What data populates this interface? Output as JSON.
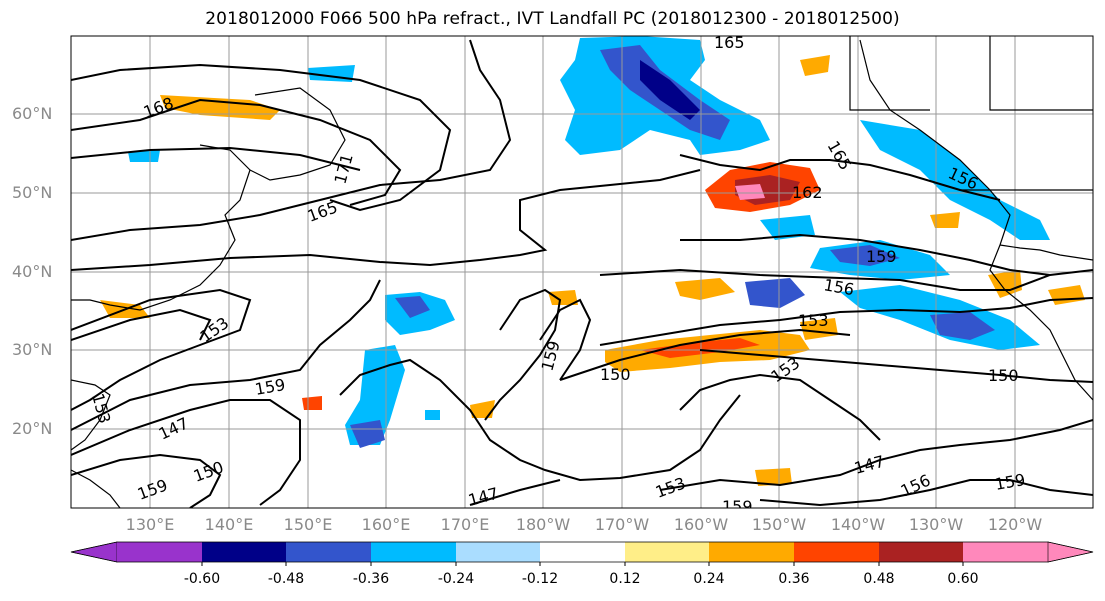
{
  "title": "2018012000 F066 500 hPa refract., IVT Landfall PC (2018012300 - 2018012500)",
  "lat_labels": [
    "60°N",
    "50°N",
    "40°N",
    "30°N",
    "20°N"
  ],
  "lon_labels": [
    "130°E",
    "140°E",
    "150°E",
    "160°E",
    "170°E",
    "180°W",
    "170°W",
    "160°W",
    "150°W",
    "140°W",
    "130°W",
    "120°W"
  ],
  "contour_labels": [
    "165",
    "168",
    "171",
    "165",
    "162",
    "165",
    "159",
    "156",
    "153",
    "153",
    "159",
    "150",
    "153",
    "150",
    "156",
    "159",
    "147",
    "150",
    "153",
    "159",
    "147",
    "153",
    "156",
    "147",
    "159",
    "159"
  ],
  "colorbar": {
    "ticks": [
      "-0.60",
      "-0.48",
      "-0.36",
      "-0.24",
      "-0.12",
      "0.12",
      "0.24",
      "0.36",
      "0.48",
      "0.60"
    ],
    "colors": [
      "#9933cc",
      "#000088",
      "#3355cc",
      "#00bbff",
      "#aaddff",
      "#ffffff",
      "#ffee88",
      "#ffaa00",
      "#ff4400",
      "#aa2222",
      "#ff88bb"
    ]
  },
  "colors": {
    "land_outline": "#000000",
    "grid": "#999999",
    "axis_label": "#8a8a8a"
  }
}
